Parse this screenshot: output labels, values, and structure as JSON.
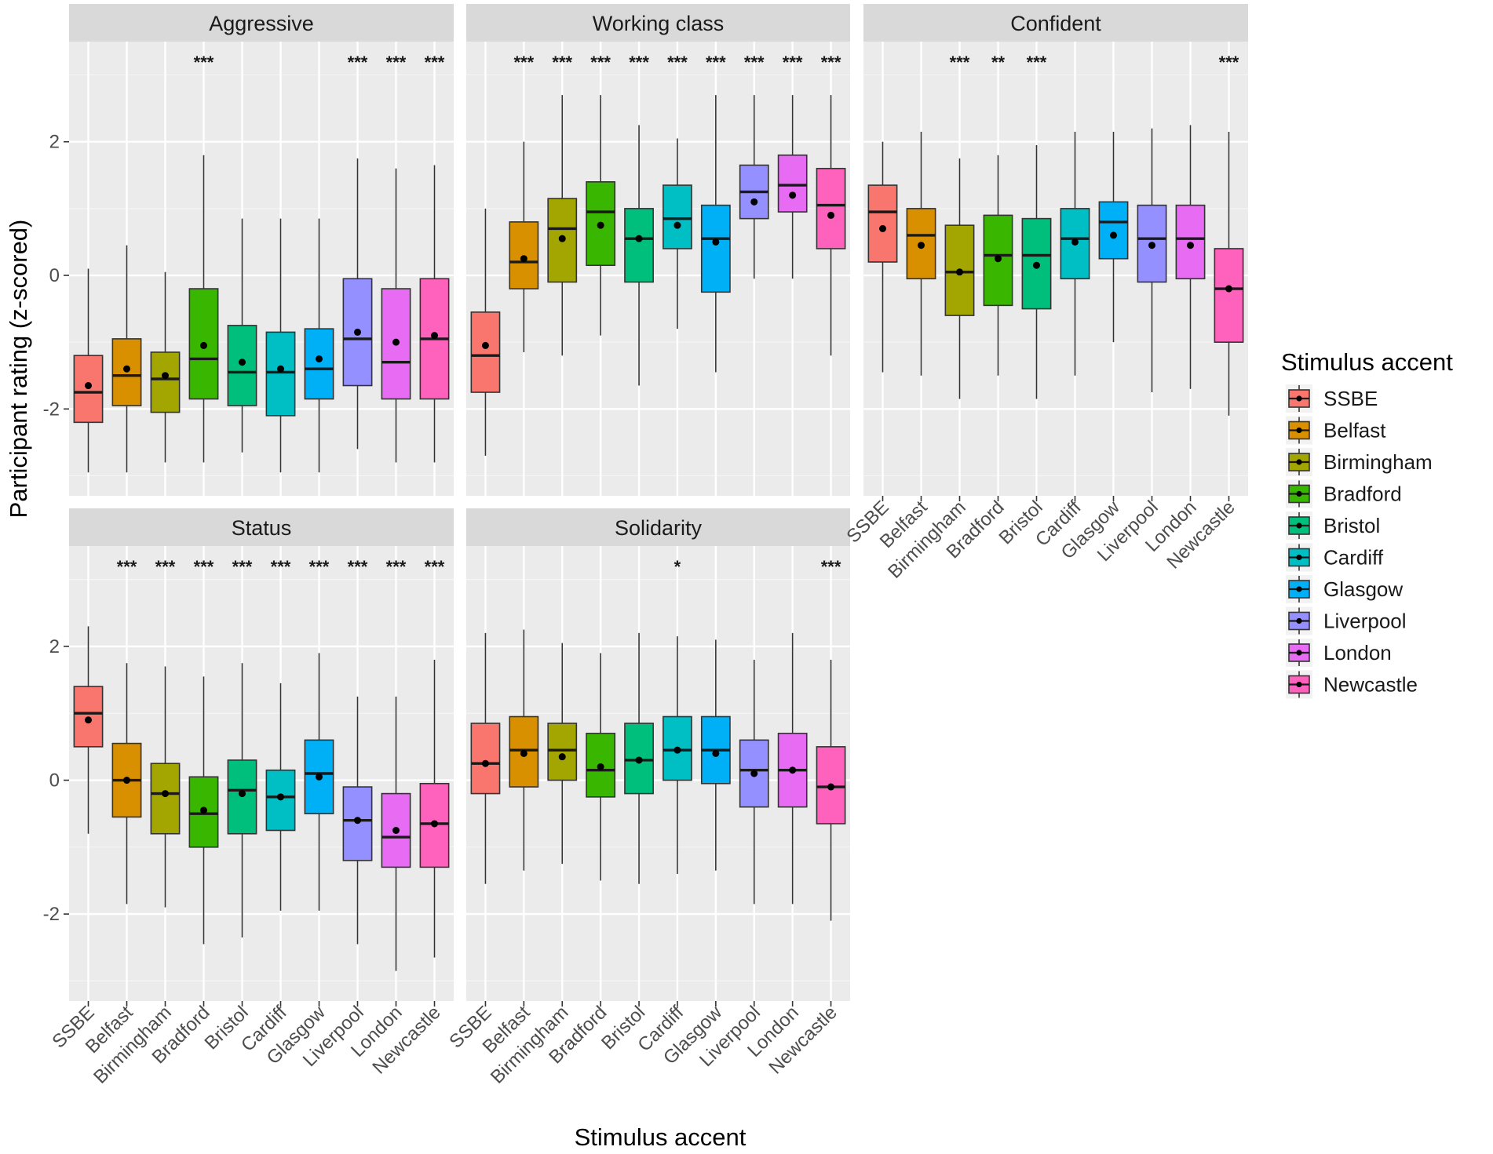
{
  "chart_data": {
    "type": "boxplot",
    "facet_layout": "3 columns x 2 rows, shared y axis",
    "xlabel": "Stimulus accent",
    "ylabel": "Participant rating (z-scored)",
    "y_ticks": [
      -2,
      0,
      2
    ],
    "y_tick_labels": [
      "-2",
      "0",
      "2"
    ],
    "ylim": [
      -3.3,
      3.5
    ],
    "grid": true,
    "mean_marker": "point",
    "categories": [
      "SSBE",
      "Belfast",
      "Birmingham",
      "Bradford",
      "Bristol",
      "Cardiff",
      "Glasgow",
      "Liverpool",
      "London",
      "Newcastle"
    ],
    "legend": {
      "title": "Stimulus accent",
      "position": "right",
      "entries": [
        {
          "label": "SSBE",
          "color": "#F8766D"
        },
        {
          "label": "Belfast",
          "color": "#D89000"
        },
        {
          "label": "Birmingham",
          "color": "#A3A500"
        },
        {
          "label": "Bradford",
          "color": "#39B600"
        },
        {
          "label": "Bristol",
          "color": "#00BF7D"
        },
        {
          "label": "Cardiff",
          "color": "#00BFC4"
        },
        {
          "label": "Glasgow",
          "color": "#00B0F6"
        },
        {
          "label": "Liverpool",
          "color": "#9590FF"
        },
        {
          "label": "London",
          "color": "#E76BF3"
        },
        {
          "label": "Newcastle",
          "color": "#FF62BC"
        }
      ]
    },
    "panels": [
      {
        "title": "Aggressive",
        "significance": [
          "",
          "",
          "",
          "***",
          "",
          "",
          "",
          "***",
          "***",
          "***"
        ],
        "boxes": [
          {
            "accent": "SSBE",
            "min": -2.95,
            "q1": -2.2,
            "median": -1.75,
            "q3": -1.2,
            "max": 0.1,
            "mean": -1.65
          },
          {
            "accent": "Belfast",
            "min": -2.95,
            "q1": -1.95,
            "median": -1.5,
            "q3": -0.95,
            "max": 0.45,
            "mean": -1.4
          },
          {
            "accent": "Birmingham",
            "min": -2.8,
            "q1": -2.05,
            "median": -1.55,
            "q3": -1.15,
            "max": 0.05,
            "mean": -1.5
          },
          {
            "accent": "Bradford",
            "min": -2.8,
            "q1": -1.85,
            "median": -1.25,
            "q3": -0.2,
            "max": 1.8,
            "mean": -1.05
          },
          {
            "accent": "Bristol",
            "min": -2.65,
            "q1": -1.95,
            "median": -1.45,
            "q3": -0.75,
            "max": 0.85,
            "mean": -1.3
          },
          {
            "accent": "Cardiff",
            "min": -2.95,
            "q1": -2.1,
            "median": -1.45,
            "q3": -0.85,
            "max": 0.85,
            "mean": -1.4
          },
          {
            "accent": "Glasgow",
            "min": -2.95,
            "q1": -1.85,
            "median": -1.4,
            "q3": -0.8,
            "max": 0.85,
            "mean": -1.25
          },
          {
            "accent": "Liverpool",
            "min": -2.6,
            "q1": -1.65,
            "median": -0.95,
            "q3": -0.05,
            "max": 1.75,
            "mean": -0.85
          },
          {
            "accent": "London",
            "min": -2.8,
            "q1": -1.85,
            "median": -1.3,
            "q3": -0.2,
            "max": 1.6,
            "mean": -1.0
          },
          {
            "accent": "Newcastle",
            "min": -2.8,
            "q1": -1.85,
            "median": -0.95,
            "q3": -0.05,
            "max": 1.65,
            "mean": -0.9
          }
        ]
      },
      {
        "title": "Working class",
        "significance": [
          "",
          "***",
          "***",
          "***",
          "***",
          "***",
          "***",
          "***",
          "***",
          "***"
        ],
        "boxes": [
          {
            "accent": "SSBE",
            "min": -2.7,
            "q1": -1.75,
            "median": -1.2,
            "q3": -0.55,
            "max": 1.0,
            "mean": -1.05
          },
          {
            "accent": "Belfast",
            "min": -1.15,
            "q1": -0.2,
            "median": 0.2,
            "q3": 0.8,
            "max": 2.0,
            "mean": 0.25
          },
          {
            "accent": "Birmingham",
            "min": -1.2,
            "q1": -0.1,
            "median": 0.7,
            "q3": 1.15,
            "max": 2.7,
            "mean": 0.55
          },
          {
            "accent": "Bradford",
            "min": -0.9,
            "q1": 0.15,
            "median": 0.95,
            "q3": 1.4,
            "max": 2.7,
            "mean": 0.75
          },
          {
            "accent": "Bristol",
            "min": -1.65,
            "q1": -0.1,
            "median": 0.55,
            "q3": 1.0,
            "max": 2.25,
            "mean": 0.55
          },
          {
            "accent": "Cardiff",
            "min": -0.8,
            "q1": 0.4,
            "median": 0.85,
            "q3": 1.35,
            "max": 2.05,
            "mean": 0.75
          },
          {
            "accent": "Glasgow",
            "min": -1.45,
            "q1": -0.25,
            "median": 0.55,
            "q3": 1.05,
            "max": 2.7,
            "mean": 0.5
          },
          {
            "accent": "Liverpool",
            "min": -0.05,
            "q1": 0.85,
            "median": 1.25,
            "q3": 1.65,
            "max": 2.7,
            "mean": 1.1
          },
          {
            "accent": "London",
            "min": -0.05,
            "q1": 0.95,
            "median": 1.35,
            "q3": 1.8,
            "max": 2.7,
            "mean": 1.2
          },
          {
            "accent": "Newcastle",
            "min": -1.2,
            "q1": 0.4,
            "median": 1.05,
            "q3": 1.6,
            "max": 2.7,
            "mean": 0.9
          }
        ]
      },
      {
        "title": "Confident",
        "significance": [
          "",
          "",
          "***",
          "**",
          "***",
          "",
          "",
          "",
          "",
          "***"
        ],
        "boxes": [
          {
            "accent": "SSBE",
            "min": -1.45,
            "q1": 0.2,
            "median": 0.95,
            "q3": 1.35,
            "max": 2.0,
            "mean": 0.7
          },
          {
            "accent": "Belfast",
            "min": -1.5,
            "q1": -0.05,
            "median": 0.6,
            "q3": 1.0,
            "max": 2.15,
            "mean": 0.45
          },
          {
            "accent": "Birmingham",
            "min": -1.85,
            "q1": -0.6,
            "median": 0.05,
            "q3": 0.75,
            "max": 1.75,
            "mean": 0.05
          },
          {
            "accent": "Bradford",
            "min": -1.5,
            "q1": -0.45,
            "median": 0.3,
            "q3": 0.9,
            "max": 1.8,
            "mean": 0.25
          },
          {
            "accent": "Bristol",
            "min": -1.85,
            "q1": -0.5,
            "median": 0.3,
            "q3": 0.85,
            "max": 1.95,
            "mean": 0.15
          },
          {
            "accent": "Cardiff",
            "min": -1.5,
            "q1": -0.05,
            "median": 0.55,
            "q3": 1.0,
            "max": 2.15,
            "mean": 0.5
          },
          {
            "accent": "Glasgow",
            "min": -1.0,
            "q1": 0.25,
            "median": 0.8,
            "q3": 1.1,
            "max": 2.15,
            "mean": 0.6
          },
          {
            "accent": "Liverpool",
            "min": -1.75,
            "q1": -0.1,
            "median": 0.55,
            "q3": 1.05,
            "max": 2.2,
            "mean": 0.45
          },
          {
            "accent": "London",
            "min": -1.7,
            "q1": -0.05,
            "median": 0.55,
            "q3": 1.05,
            "max": 2.25,
            "mean": 0.45
          },
          {
            "accent": "Newcastle",
            "min": -2.1,
            "q1": -1.0,
            "median": -0.2,
            "q3": 0.4,
            "max": 2.15,
            "mean": -0.2
          }
        ]
      },
      {
        "title": "Status",
        "significance": [
          "",
          "***",
          "***",
          "***",
          "***",
          "***",
          "***",
          "***",
          "***",
          "***"
        ],
        "boxes": [
          {
            "accent": "SSBE",
            "min": -0.8,
            "q1": 0.5,
            "median": 1.0,
            "q3": 1.4,
            "max": 2.3,
            "mean": 0.9
          },
          {
            "accent": "Belfast",
            "min": -1.85,
            "q1": -0.55,
            "median": 0.0,
            "q3": 0.55,
            "max": 1.75,
            "mean": 0.0
          },
          {
            "accent": "Birmingham",
            "min": -1.9,
            "q1": -0.8,
            "median": -0.2,
            "q3": 0.25,
            "max": 1.7,
            "mean": -0.2
          },
          {
            "accent": "Bradford",
            "min": -2.45,
            "q1": -1.0,
            "median": -0.5,
            "q3": 0.05,
            "max": 1.55,
            "mean": -0.45
          },
          {
            "accent": "Bristol",
            "min": -2.35,
            "q1": -0.8,
            "median": -0.15,
            "q3": 0.3,
            "max": 1.75,
            "mean": -0.2
          },
          {
            "accent": "Cardiff",
            "min": -1.95,
            "q1": -0.75,
            "median": -0.25,
            "q3": 0.15,
            "max": 1.45,
            "mean": -0.25
          },
          {
            "accent": "Glasgow",
            "min": -1.95,
            "q1": -0.5,
            "median": 0.1,
            "q3": 0.6,
            "max": 1.9,
            "mean": 0.05
          },
          {
            "accent": "Liverpool",
            "min": -2.45,
            "q1": -1.2,
            "median": -0.6,
            "q3": -0.1,
            "max": 1.25,
            "mean": -0.6
          },
          {
            "accent": "London",
            "min": -2.85,
            "q1": -1.3,
            "median": -0.85,
            "q3": -0.2,
            "max": 1.25,
            "mean": -0.75
          },
          {
            "accent": "Newcastle",
            "min": -2.65,
            "q1": -1.3,
            "median": -0.65,
            "q3": -0.05,
            "max": 1.8,
            "mean": -0.65
          }
        ]
      },
      {
        "title": "Solidarity",
        "significance": [
          "",
          "",
          "",
          "",
          "",
          "*",
          "",
          "",
          "",
          "***"
        ],
        "boxes": [
          {
            "accent": "SSBE",
            "min": -1.55,
            "q1": -0.2,
            "median": 0.25,
            "q3": 0.85,
            "max": 2.2,
            "mean": 0.25
          },
          {
            "accent": "Belfast",
            "min": -1.35,
            "q1": -0.1,
            "median": 0.45,
            "q3": 0.95,
            "max": 2.25,
            "mean": 0.4
          },
          {
            "accent": "Birmingham",
            "min": -1.25,
            "q1": 0.0,
            "median": 0.45,
            "q3": 0.85,
            "max": 2.05,
            "mean": 0.35
          },
          {
            "accent": "Bradford",
            "min": -1.5,
            "q1": -0.25,
            "median": 0.15,
            "q3": 0.7,
            "max": 1.9,
            "mean": 0.2
          },
          {
            "accent": "Bristol",
            "min": -1.55,
            "q1": -0.2,
            "median": 0.3,
            "q3": 0.85,
            "max": 2.2,
            "mean": 0.3
          },
          {
            "accent": "Cardiff",
            "min": -1.4,
            "q1": 0.0,
            "median": 0.45,
            "q3": 0.95,
            "max": 2.15,
            "mean": 0.45
          },
          {
            "accent": "Glasgow",
            "min": -1.35,
            "q1": -0.05,
            "median": 0.45,
            "q3": 0.95,
            "max": 2.1,
            "mean": 0.4
          },
          {
            "accent": "Liverpool",
            "min": -1.85,
            "q1": -0.4,
            "median": 0.15,
            "q3": 0.6,
            "max": 1.8,
            "mean": 0.1
          },
          {
            "accent": "London",
            "min": -1.85,
            "q1": -0.4,
            "median": 0.15,
            "q3": 0.7,
            "max": 2.2,
            "mean": 0.15
          },
          {
            "accent": "Newcastle",
            "min": -2.1,
            "q1": -0.65,
            "median": -0.1,
            "q3": 0.5,
            "max": 1.8,
            "mean": -0.1
          }
        ]
      }
    ]
  }
}
